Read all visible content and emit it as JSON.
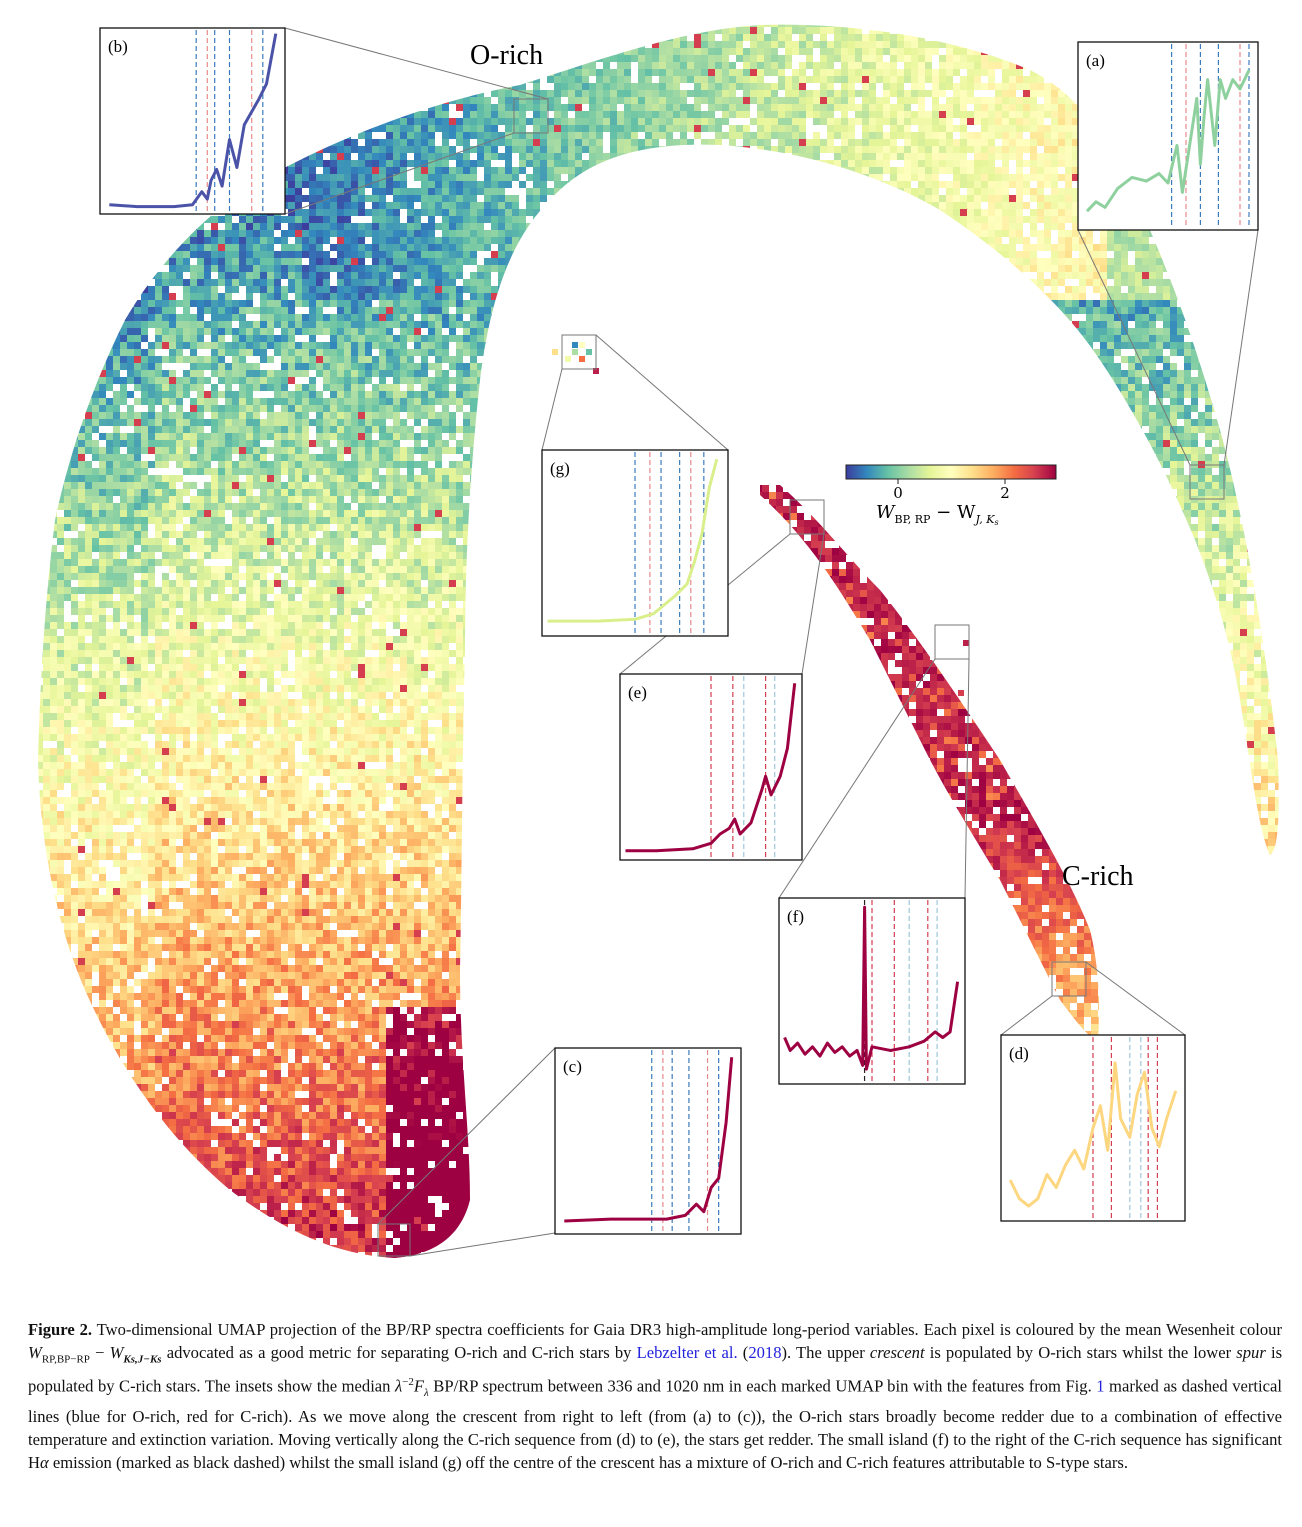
{
  "figure": {
    "region_labels": {
      "o_rich": "O-rich",
      "c_rich": "C-rich"
    },
    "colorbar": {
      "ticks": [
        "0",
        "2"
      ],
      "label": "W_{BP,RP} − W_{J,Ks}",
      "label_main": "W",
      "label_sub1": "BP, RP",
      "label_mid": " − W",
      "label_sub2": "J, K",
      "label_sub3": "s",
      "colormap": [
        "#3d3d9e",
        "#3288bd",
        "#66c2a5",
        "#abdda4",
        "#e6f598",
        "#ffffbf",
        "#fee08b",
        "#fdae61",
        "#f46d43",
        "#d53e4f",
        "#9e0142"
      ]
    },
    "insets": [
      {
        "id": "a",
        "label": "(a)",
        "line_color": "#8fd19e",
        "feature_lines": "O-rich"
      },
      {
        "id": "b",
        "label": "(b)",
        "line_color": "#4b53a8",
        "feature_lines": "O-rich"
      },
      {
        "id": "c",
        "label": "(c)",
        "line_color": "#9e0142",
        "feature_lines": "O-rich"
      },
      {
        "id": "d",
        "label": "(d)",
        "line_color": "#fdd680",
        "feature_lines": "C-rich"
      },
      {
        "id": "e",
        "label": "(e)",
        "line_color": "#9e0142",
        "feature_lines": "C-rich"
      },
      {
        "id": "f",
        "label": "(f)",
        "line_color": "#9e0142",
        "feature_lines": "C-rich + Hα"
      },
      {
        "id": "g",
        "label": "(g)",
        "line_color": "#d9ef8b",
        "feature_lines": "mixed"
      }
    ]
  },
  "caption": {
    "fig_label": "Figure 2.",
    "t1": " Two-dimensional UMAP projection of the BP/RP spectra coefficients for Gaia DR3 high-amplitude long-period variables. Each pixel is coloured by the mean Wesenheit colour ",
    "w1": "W",
    "w1_sub": "RP,BP−RP",
    "minus": " − ",
    "w2": "W",
    "w2_sub": "Ks,J−Ks",
    "t2": " advocated as a good metric for separating O-rich and C-rich stars by ",
    "ref_name": "Lebzelter et al.",
    "ref_year_open": " (",
    "ref_year": "2018",
    "ref_year_close": ")",
    "t3": ". The upper ",
    "crescent": "crescent",
    "t4": " is populated by O-rich stars whilst the lower ",
    "spur": "spur",
    "t5": " is populated by C-rich stars. The insets show the median ",
    "lambda_expr": "λ",
    "lambda_sup": "−2",
    "flux": "F",
    "flux_sub": "λ",
    "t6": " BP/RP spectrum between 336 and 1020 nm in each marked UMAP bin with the features from Fig. ",
    "fig_ref": "1",
    "t7": " marked as dashed vertical lines (blue for O-rich, red for C-rich). As we move along the crescent from right to left (from (a) to (c)), the O-rich stars broadly become redder due to a combination of effective temperature and extinction variation. Moving vertically along the C-rich sequence from (d) to (e), the stars get redder. The small island (f) to the right of the C-rich sequence has significant H",
    "alpha": "α",
    "t8": " emission (marked as black dashed) whilst the small island (g) off the centre of the crescent has a mixture of O-rich and C-rich features attributable to S-type stars."
  }
}
